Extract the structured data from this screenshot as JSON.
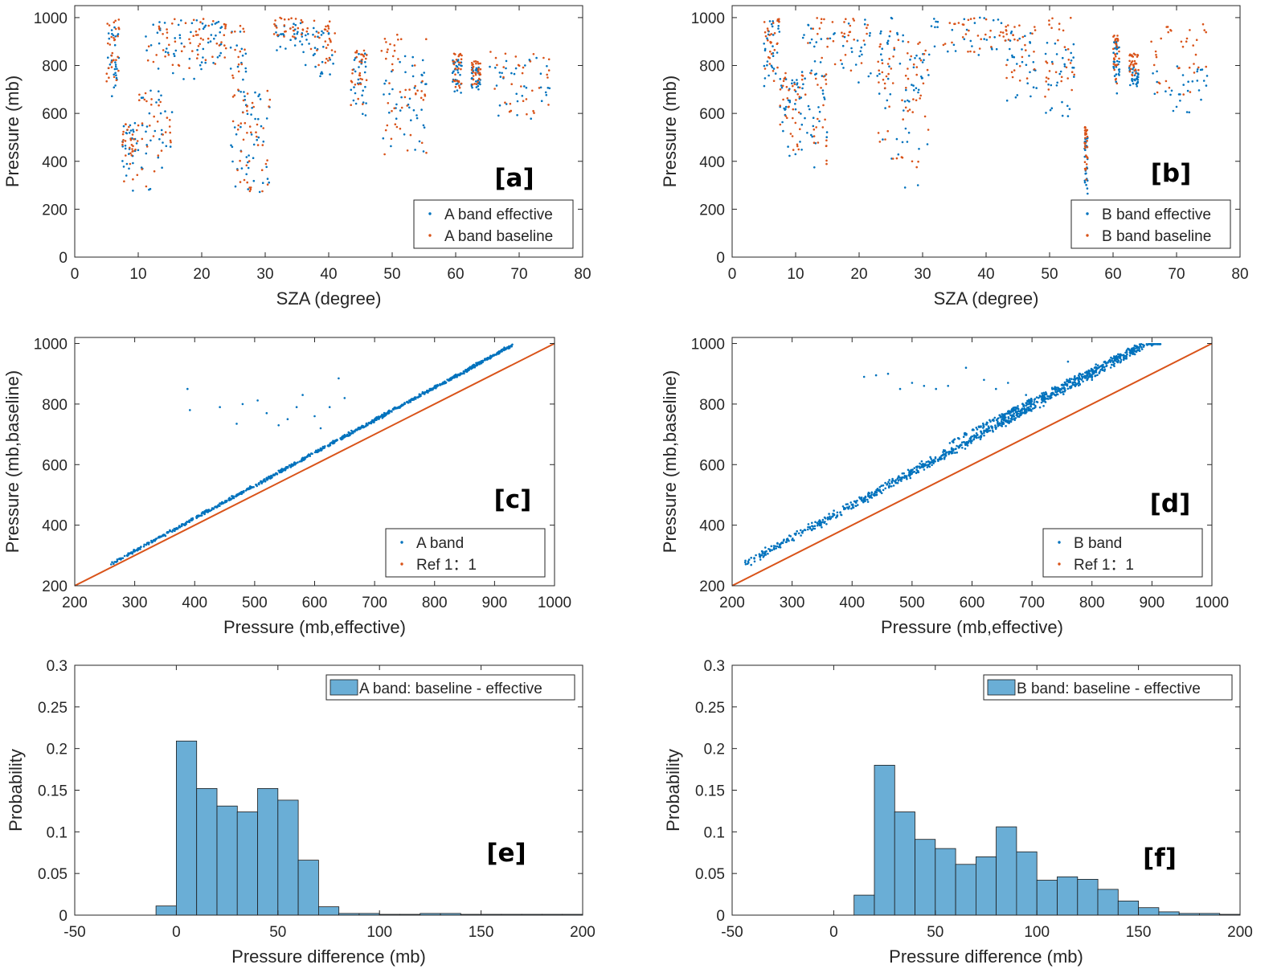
{
  "colors": {
    "effective": "#0072BD",
    "baseline": "#D95319",
    "hist_fill": "#6AAED6",
    "hist_edge": "#1A1A1A",
    "axis": "#262626"
  },
  "chart_data": [
    {
      "id": "a",
      "type": "scatter",
      "panel_label": "[a]",
      "xlabel": "SZA (degree)",
      "ylabel": "Pressure (mb)",
      "xlim": [
        0,
        80
      ],
      "ylim": [
        0,
        1050
      ],
      "xticks": [
        0,
        10,
        20,
        30,
        40,
        50,
        60,
        70,
        80
      ],
      "yticks": [
        0,
        200,
        400,
        600,
        800,
        1000
      ],
      "legend": {
        "position": "bottom-right",
        "entries": [
          "A band effective",
          "A band baseline"
        ]
      },
      "series": [
        {
          "name": "A band effective",
          "color_key": "effective",
          "clusters": [
            {
              "x": [
                5,
                7
              ],
              "y": [
                650,
                960
              ]
            },
            {
              "x": [
                7.5,
                10
              ],
              "y": [
                270,
                560
              ]
            },
            {
              "x": [
                10,
                15.5
              ],
              "y": [
                270,
                700
              ]
            },
            {
              "x": [
                11,
                19
              ],
              "y": [
                720,
                990
              ]
            },
            {
              "x": [
                19,
                24
              ],
              "y": [
                760,
                990
              ]
            },
            {
              "x": [
                24.5,
                27
              ],
              "y": [
                280,
                950
              ]
            },
            {
              "x": [
                27,
                31
              ],
              "y": [
                230,
                700
              ]
            },
            {
              "x": [
                31,
                36
              ],
              "y": [
                860,
                980
              ]
            },
            {
              "x": [
                36,
                41
              ],
              "y": [
                750,
                960
              ]
            },
            {
              "x": [
                43.5,
                46
              ],
              "y": [
                580,
                850
              ]
            },
            {
              "x": [
                48,
                55.5
              ],
              "y": [
                380,
                850
              ]
            },
            {
              "x": [
                59.5,
                61
              ],
              "y": [
                680,
                830
              ]
            },
            {
              "x": [
                62.5,
                64
              ],
              "y": [
                700,
                800
              ]
            },
            {
              "x": [
                65,
                75
              ],
              "y": [
                560,
                840
              ]
            }
          ]
        },
        {
          "name": "A band baseline",
          "color_key": "baseline",
          "clusters": [
            {
              "x": [
                5,
                7
              ],
              "y": [
                700,
                1000
              ]
            },
            {
              "x": [
                7.5,
                10
              ],
              "y": [
                290,
                560
              ]
            },
            {
              "x": [
                10,
                15.5
              ],
              "y": [
                290,
                700
              ]
            },
            {
              "x": [
                11,
                19
              ],
              "y": [
                760,
                1000
              ]
            },
            {
              "x": [
                19,
                24
              ],
              "y": [
                800,
                1000
              ]
            },
            {
              "x": [
                24.5,
                27
              ],
              "y": [
                300,
                980
              ]
            },
            {
              "x": [
                27,
                31
              ],
              "y": [
                250,
                700
              ]
            },
            {
              "x": [
                31,
                36
              ],
              "y": [
                900,
                1000
              ]
            },
            {
              "x": [
                36,
                41
              ],
              "y": [
                800,
                1000
              ]
            },
            {
              "x": [
                43.5,
                46
              ],
              "y": [
                620,
                880
              ]
            },
            {
              "x": [
                48,
                55.5
              ],
              "y": [
                420,
                960
              ]
            },
            {
              "x": [
                59.5,
                61
              ],
              "y": [
                700,
                850
              ]
            },
            {
              "x": [
                62.5,
                64
              ],
              "y": [
                720,
                820
              ]
            },
            {
              "x": [
                65,
                75
              ],
              "y": [
                580,
                860
              ]
            }
          ]
        }
      ]
    },
    {
      "id": "b",
      "type": "scatter",
      "panel_label": "[b]",
      "xlabel": "SZA (degree)",
      "ylabel": "Pressure (mb)",
      "xlim": [
        0,
        80
      ],
      "ylim": [
        0,
        1050
      ],
      "xticks": [
        0,
        10,
        20,
        30,
        40,
        50,
        60,
        70,
        80
      ],
      "yticks": [
        0,
        200,
        400,
        600,
        800,
        1000
      ],
      "legend": {
        "position": "bottom-right",
        "entries": [
          "B band effective",
          "B band baseline"
        ]
      },
      "series": [
        {
          "name": "B band effective",
          "color_key": "effective",
          "clusters": [
            {
              "x": [
                5,
                7.5
              ],
              "y": [
                650,
                1000
              ]
            },
            {
              "x": [
                7.5,
                10.5
              ],
              "y": [
                380,
                780
              ]
            },
            {
              "x": [
                10.5,
                15
              ],
              "y": [
                350,
                780
              ]
            },
            {
              "x": [
                11,
                23
              ],
              "y": [
                700,
                1000
              ]
            },
            {
              "x": [
                23,
                27
              ],
              "y": [
                380,
                1000
              ]
            },
            {
              "x": [
                27,
                31
              ],
              "y": [
                280,
                850
              ]
            },
            {
              "x": [
                31,
                43
              ],
              "y": [
                820,
                1000
              ]
            },
            {
              "x": [
                43,
                48
              ],
              "y": [
                640,
                950
              ]
            },
            {
              "x": [
                49,
                54
              ],
              "y": [
                550,
                900
              ]
            },
            {
              "x": [
                55.5,
                56
              ],
              "y": [
                260,
                500
              ]
            },
            {
              "x": [
                60,
                61
              ],
              "y": [
                680,
                900
              ]
            },
            {
              "x": [
                62.5,
                64
              ],
              "y": [
                700,
                800
              ]
            },
            {
              "x": [
                66,
                75
              ],
              "y": [
                560,
                800
              ]
            }
          ]
        },
        {
          "name": "B band baseline",
          "color_key": "baseline",
          "clusters": [
            {
              "x": [
                5,
                7.5
              ],
              "y": [
                720,
                1000
              ]
            },
            {
              "x": [
                7.5,
                10.5
              ],
              "y": [
                400,
                780
              ]
            },
            {
              "x": [
                10.5,
                15
              ],
              "y": [
                380,
                780
              ]
            },
            {
              "x": [
                11,
                23
              ],
              "y": [
                750,
                1000
              ]
            },
            {
              "x": [
                23,
                27
              ],
              "y": [
                400,
                1000
              ]
            },
            {
              "x": [
                27,
                31
              ],
              "y": [
                300,
                900
              ]
            },
            {
              "x": [
                31,
                43
              ],
              "y": [
                850,
                1000
              ]
            },
            {
              "x": [
                43,
                48
              ],
              "y": [
                680,
                980
              ]
            },
            {
              "x": [
                49,
                54
              ],
              "y": [
                650,
                1000
              ]
            },
            {
              "x": [
                55.5,
                56
              ],
              "y": [
                300,
                550
              ]
            },
            {
              "x": [
                60,
                61
              ],
              "y": [
                720,
                930
              ]
            },
            {
              "x": [
                62.5,
                64
              ],
              "y": [
                750,
                850
              ]
            },
            {
              "x": [
                66,
                75
              ],
              "y": [
                650,
                980
              ]
            }
          ]
        }
      ]
    },
    {
      "id": "c",
      "type": "scatter",
      "panel_label": "[c]",
      "xlabel": "Pressure (mb,effective)",
      "ylabel": "Pressure (mb,baseline)",
      "xlim": [
        200,
        1000
      ],
      "ylim": [
        200,
        1020
      ],
      "xticks": [
        200,
        300,
        400,
        500,
        600,
        700,
        800,
        900,
        1000
      ],
      "yticks": [
        200,
        400,
        600,
        800,
        1000
      ],
      "legend": {
        "position": "bottom-right",
        "entries": [
          "A band",
          "Ref 1：1"
        ]
      },
      "band": {
        "x_range": [
          260,
          930
        ],
        "offset_at_start": 12,
        "offset_at_end": 65,
        "spread": 8
      },
      "outliers": [
        [
          388,
          850
        ],
        [
          392,
          780
        ],
        [
          442,
          790
        ],
        [
          470,
          735
        ],
        [
          480,
          800
        ],
        [
          505,
          812
        ],
        [
          520,
          770
        ],
        [
          540,
          730
        ],
        [
          555,
          750
        ],
        [
          570,
          790
        ],
        [
          580,
          830
        ],
        [
          600,
          760
        ],
        [
          610,
          720
        ],
        [
          625,
          790
        ],
        [
          640,
          885
        ],
        [
          650,
          820
        ]
      ],
      "reference_line": {
        "x": [
          200,
          1000
        ],
        "y": [
          200,
          1000
        ]
      }
    },
    {
      "id": "d",
      "type": "scatter",
      "panel_label": "[d]",
      "xlabel": "Pressure (mb,effective)",
      "ylabel": "Pressure (mb,baseline)",
      "xlim": [
        200,
        1000
      ],
      "ylim": [
        200,
        1020
      ],
      "xticks": [
        200,
        300,
        400,
        500,
        600,
        700,
        800,
        900,
        1000
      ],
      "yticks": [
        200,
        400,
        600,
        800,
        1000
      ],
      "legend": {
        "position": "bottom-right",
        "entries": [
          "B band",
          "Ref 1：1"
        ]
      },
      "band": {
        "x_range": [
          220,
          915
        ],
        "offset_at_start": 50,
        "offset_at_end": 110,
        "spread": 22
      },
      "upper_band": {
        "x_range": [
          560,
          880
        ],
        "offset_at_start": 110,
        "offset_at_end": 115,
        "spread": 12
      },
      "outliers": [
        [
          420,
          890
        ],
        [
          440,
          895
        ],
        [
          460,
          900
        ],
        [
          480,
          850
        ],
        [
          500,
          870
        ],
        [
          520,
          860
        ],
        [
          540,
          850
        ],
        [
          560,
          860
        ],
        [
          590,
          920
        ],
        [
          620,
          880
        ],
        [
          640,
          850
        ],
        [
          660,
          870
        ],
        [
          690,
          830
        ],
        [
          720,
          820
        ],
        [
          760,
          940
        ],
        [
          780,
          900
        ],
        [
          800,
          880
        ]
      ],
      "reference_line": {
        "x": [
          200,
          1000
        ],
        "y": [
          200,
          1000
        ]
      }
    },
    {
      "id": "e",
      "type": "bar",
      "panel_label": "[e]",
      "xlabel": "Pressure difference (mb)",
      "ylabel": "Probability",
      "xlim": [
        -50,
        200
      ],
      "ylim": [
        0,
        0.3
      ],
      "xticks": [
        -50,
        0,
        50,
        100,
        150,
        200
      ],
      "yticks": [
        0,
        0.05,
        0.1,
        0.15,
        0.2,
        0.25,
        0.3
      ],
      "legend": {
        "position": "top-right",
        "entries": [
          "A band: baseline - effective"
        ]
      },
      "bin_edges": [
        -10,
        0,
        10,
        20,
        30,
        40,
        50,
        60,
        70,
        80,
        90,
        100,
        110,
        120,
        130,
        140,
        150,
        160,
        170,
        180,
        190,
        200
      ],
      "values": [
        0.011,
        0.209,
        0.152,
        0.131,
        0.124,
        0.152,
        0.138,
        0.066,
        0.01,
        0.002,
        0.002,
        0.001,
        0.001,
        0.002,
        0.002,
        0.001,
        0.001,
        0.001,
        0.001,
        0.001,
        0.001
      ]
    },
    {
      "id": "f",
      "type": "bar",
      "panel_label": "[f]",
      "xlabel": "Pressure difference (mb)",
      "ylabel": "Probability",
      "xlim": [
        -50,
        200
      ],
      "ylim": [
        0,
        0.3
      ],
      "xticks": [
        -50,
        0,
        50,
        100,
        150,
        200
      ],
      "yticks": [
        0,
        0.05,
        0.1,
        0.15,
        0.2,
        0.25,
        0.3
      ],
      "legend": {
        "position": "top-right",
        "entries": [
          "B band: baseline - effective"
        ]
      },
      "bin_edges": [
        10,
        20,
        30,
        40,
        50,
        60,
        70,
        80,
        90,
        100,
        110,
        120,
        130,
        140,
        150,
        160,
        170,
        180,
        190,
        200
      ],
      "values": [
        0.024,
        0.18,
        0.124,
        0.091,
        0.08,
        0.061,
        0.07,
        0.106,
        0.076,
        0.042,
        0.046,
        0.043,
        0.031,
        0.017,
        0.009,
        0.004,
        0.002,
        0.002,
        0.001
      ]
    }
  ]
}
